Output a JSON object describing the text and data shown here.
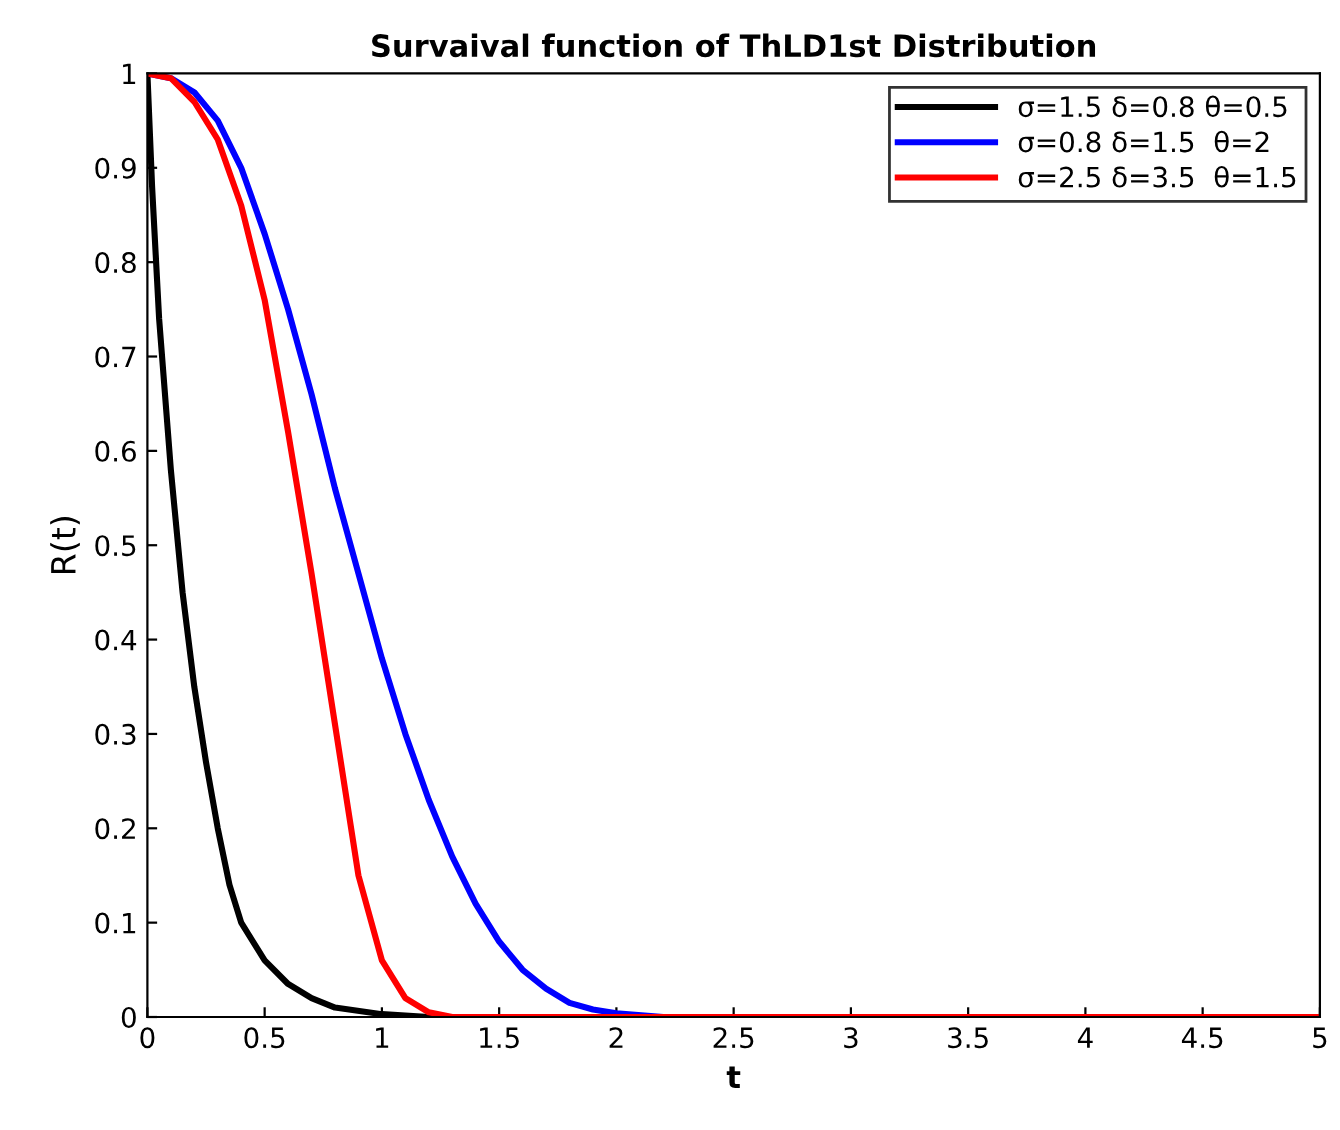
{
  "chart_data": {
    "type": "line",
    "title": "Survaival function of ThLD1st Distribution",
    "xlabel": "t",
    "ylabel": "R(t)",
    "xlim": [
      0,
      5
    ],
    "xticks": [
      0,
      0.5,
      1,
      1.5,
      2,
      2.5,
      3,
      3.5,
      4,
      4.5,
      5
    ],
    "ylim": [
      0,
      1
    ],
    "yticks": [
      0,
      0.1,
      0.2,
      0.3,
      0.4,
      0.5,
      0.6,
      0.7,
      0.8,
      0.9,
      1
    ],
    "grid": false,
    "legend": "top right",
    "line_style": "solid",
    "marker": "none",
    "series": [
      {
        "name": "σ=1.5 δ=0.8 θ=0.5",
        "color": "#000000",
        "x": [
          0,
          0.02,
          0.05,
          0.1,
          0.15,
          0.2,
          0.25,
          0.3,
          0.35,
          0.4,
          0.5,
          0.6,
          0.7,
          0.8,
          1,
          1.2,
          5
        ],
        "values": [
          1,
          0.88,
          0.74,
          0.58,
          0.45,
          0.35,
          0.27,
          0.2,
          0.14,
          0.1,
          0.06,
          0.035,
          0.02,
          0.01,
          0.003,
          0,
          0
        ]
      },
      {
        "name": "σ=0.8 δ=1.5  θ=2",
        "color": "#0000ff",
        "x": [
          0,
          0.1,
          0.2,
          0.3,
          0.4,
          0.5,
          0.6,
          0.7,
          0.8,
          0.9,
          1.0,
          1.1,
          1.2,
          1.3,
          1.4,
          1.5,
          1.6,
          1.7,
          1.8,
          1.9,
          2.0,
          2.2,
          5
        ],
        "values": [
          1,
          0.995,
          0.98,
          0.95,
          0.9,
          0.83,
          0.75,
          0.66,
          0.56,
          0.47,
          0.38,
          0.3,
          0.23,
          0.17,
          0.12,
          0.08,
          0.05,
          0.03,
          0.015,
          0.008,
          0.004,
          0,
          0
        ]
      },
      {
        "name": "σ=2.5 δ=3.5  θ=1.5",
        "color": "#ff0000",
        "x": [
          0,
          0.1,
          0.2,
          0.3,
          0.4,
          0.5,
          0.6,
          0.7,
          0.8,
          0.9,
          1.0,
          1.1,
          1.2,
          1.3,
          5
        ],
        "values": [
          1,
          0.995,
          0.97,
          0.93,
          0.86,
          0.76,
          0.62,
          0.47,
          0.31,
          0.15,
          0.06,
          0.02,
          0.005,
          0,
          0
        ]
      }
    ]
  }
}
